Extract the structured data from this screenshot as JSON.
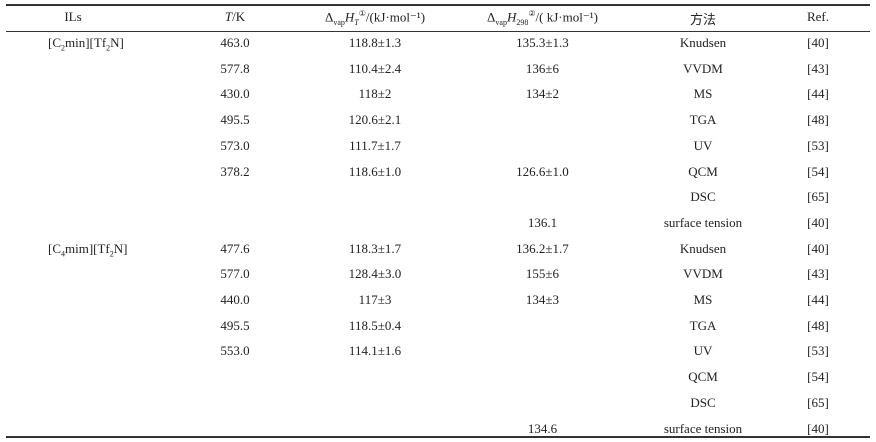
{
  "header": {
    "ils": "ILs",
    "t_italic": "T",
    "t_unit": "/K",
    "h_t": {
      "delta": "Δ",
      "sub": "vap",
      "var": "H",
      "var_sub": "T",
      "note": "①",
      "unit": "/(kJ·mol⁻¹)"
    },
    "h_298": {
      "delta": "Δ",
      "sub": "vap",
      "var": "H",
      "var_sub": "298",
      "note": "②",
      "unit": "/( kJ·mol⁻¹)"
    },
    "method": "方法",
    "ref": "Ref."
  },
  "groups": [
    {
      "il": {
        "pre": "[C",
        "sub1": "2",
        "mid": "min][Tf",
        "sub2": "2",
        "post": "N]"
      }
    },
    {
      "il": {
        "pre": "[C",
        "sub1": "4",
        "mid": "mim][Tf",
        "sub2": "2",
        "post": "N]"
      }
    }
  ],
  "rows": [
    {
      "t": "463.0",
      "ht": "118.8±1.3",
      "h298": "135.3±1.3",
      "method": "Knudsen",
      "ref": "[40]"
    },
    {
      "t": "577.8",
      "ht": "110.4±2.4",
      "h298": "136±6",
      "method": "VVDM",
      "ref": "[43]"
    },
    {
      "t": "430.0",
      "ht": "118±2",
      "h298": "134±2",
      "method": "MS",
      "ref": "[44]"
    },
    {
      "t": "495.5",
      "ht": "120.6±2.1",
      "h298": "",
      "method": "TGA",
      "ref": "[48]"
    },
    {
      "t": "573.0",
      "ht": "111.7±1.7",
      "h298": "",
      "method": "UV",
      "ref": "[53]"
    },
    {
      "t": "378.2",
      "ht": "118.6±1.0",
      "h298": "126.6±1.0",
      "method": "QCM",
      "ref": "[54]"
    },
    {
      "t": "",
      "ht": "",
      "h298": "",
      "method": "DSC",
      "ref": "[65]"
    },
    {
      "t": "",
      "ht": "",
      "h298": "136.1",
      "method": "surface tension",
      "ref": "[40]"
    },
    {
      "t": "477.6",
      "ht": "118.3±1.7",
      "h298": "136.2±1.7",
      "method": "Knudsen",
      "ref": "[40]"
    },
    {
      "t": "577.0",
      "ht": "128.4±3.0",
      "h298": "155±6",
      "method": "VVDM",
      "ref": "[43]"
    },
    {
      "t": "440.0",
      "ht": "117±3",
      "h298": "134±3",
      "method": "MS",
      "ref": "[44]"
    },
    {
      "t": "495.5",
      "ht": "118.5±0.4",
      "h298": "",
      "method": "TGA",
      "ref": "[48]"
    },
    {
      "t": "553.0",
      "ht": "114.1±1.6",
      "h298": "",
      "method": "UV",
      "ref": "[53]"
    },
    {
      "t": "",
      "ht": "",
      "h298": "",
      "method": "QCM",
      "ref": "[54]"
    },
    {
      "t": "",
      "ht": "",
      "h298": "",
      "method": "DSC",
      "ref": "[65]"
    },
    {
      "t": "",
      "ht": "",
      "h298": "134.6",
      "method": "surface tension",
      "ref": "[40]"
    }
  ]
}
